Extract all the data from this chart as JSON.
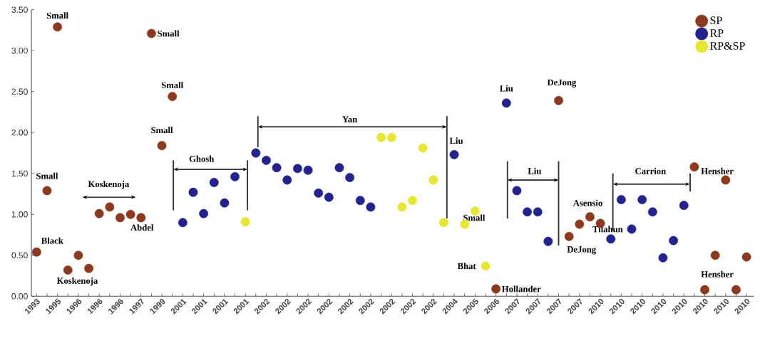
{
  "chart_data": {
    "type": "scatter",
    "categories": [
      "1993",
      null,
      "1995",
      null,
      "1996",
      null,
      "1996",
      null,
      "1996",
      null,
      "1997",
      null,
      "1999",
      null,
      "2001",
      null,
      "2001",
      null,
      "2001",
      null,
      "2001",
      null,
      "2002",
      null,
      "2002",
      null,
      "2002",
      null,
      "2002",
      null,
      "2002",
      null,
      "2002",
      null,
      "2002",
      null,
      "2002",
      null,
      "2002",
      null,
      "2004",
      null,
      "2005",
      null,
      "2006",
      null,
      "2007",
      null,
      "2007",
      null,
      "2007",
      null,
      "2007",
      null,
      "2010",
      null,
      "2010",
      null,
      "2010",
      null,
      "2010",
      null,
      "2010",
      null,
      "2010",
      null,
      "2010",
      null,
      "2010"
    ],
    "series": [
      {
        "name": "SP",
        "color": "#8b3a1e",
        "values": [
          0.54,
          1.29,
          3.29,
          0.32,
          0.5,
          0.34,
          1.01,
          1.09,
          0.96,
          1.0,
          0.96,
          3.21,
          1.84,
          2.44,
          null,
          null,
          null,
          null,
          null,
          null,
          null,
          null,
          null,
          null,
          null,
          null,
          null,
          null,
          null,
          null,
          null,
          null,
          null,
          null,
          null,
          null,
          null,
          null,
          null,
          null,
          null,
          null,
          null,
          null,
          0.09,
          null,
          null,
          null,
          null,
          null,
          2.39,
          0.73,
          0.88,
          0.97,
          0.89,
          null,
          null,
          null,
          null,
          null,
          null,
          null,
          null,
          1.58,
          0.08,
          0.5,
          1.42,
          0.08,
          0.48
        ]
      },
      {
        "name": "RP",
        "color": "#23238f",
        "values": [
          null,
          null,
          null,
          null,
          null,
          null,
          null,
          null,
          null,
          null,
          null,
          null,
          null,
          null,
          0.9,
          1.27,
          1.01,
          1.39,
          1.14,
          1.46,
          null,
          1.75,
          1.66,
          1.57,
          1.42,
          1.56,
          1.54,
          1.26,
          1.21,
          1.57,
          1.45,
          1.17,
          1.09,
          null,
          null,
          null,
          null,
          null,
          null,
          null,
          1.73,
          null,
          null,
          null,
          null,
          2.36,
          1.29,
          1.03,
          1.03,
          0.67,
          null,
          null,
          null,
          null,
          null,
          0.7,
          1.18,
          0.82,
          1.18,
          1.03,
          0.47,
          0.68,
          1.11,
          null,
          null,
          null,
          null,
          null,
          null
        ]
      },
      {
        "name": "RP&SP",
        "color": "#e6e633",
        "values": [
          null,
          null,
          null,
          null,
          null,
          null,
          null,
          null,
          null,
          null,
          null,
          null,
          null,
          null,
          null,
          null,
          null,
          null,
          null,
          null,
          0.91,
          null,
          null,
          null,
          null,
          null,
          null,
          null,
          null,
          null,
          null,
          null,
          null,
          1.94,
          1.94,
          1.09,
          1.17,
          1.81,
          1.42,
          0.9,
          null,
          0.88,
          1.04,
          0.37,
          null,
          null,
          null,
          null,
          null,
          null,
          null,
          null,
          null,
          null,
          null,
          null,
          null,
          null,
          null,
          null,
          null,
          null,
          null,
          null,
          null,
          null,
          null,
          null,
          null
        ]
      }
    ],
    "ylim": [
      0,
      3.5
    ],
    "yticks": [
      {
        "value": 0,
        "label": "0.00"
      },
      {
        "value": 0.5,
        "label": "0.50"
      },
      {
        "value": 1,
        "label": "1.00"
      },
      {
        "value": 1.5,
        "label": "1.50"
      },
      {
        "value": 2,
        "label": "2.00"
      },
      {
        "value": 2.5,
        "label": "2.50"
      },
      {
        "value": 3,
        "label": "3.00"
      },
      {
        "value": 3.5,
        "label": "3.50"
      }
    ],
    "legend": "top right",
    "marker": "circle",
    "annotations": [
      "Small",
      "Small",
      "Small",
      "Small",
      "Small",
      "Koskenoja",
      "Abdel",
      "Black",
      "Koskenoja",
      "Ghosh",
      "Yan",
      "Liu",
      "Small",
      "Bhat",
      "Hollander",
      "Liu",
      "DeJong",
      "Liu",
      "Asensio",
      "Tilahun",
      "DeJong",
      "Carrion",
      "Hensher",
      "Hensher"
    ]
  }
}
